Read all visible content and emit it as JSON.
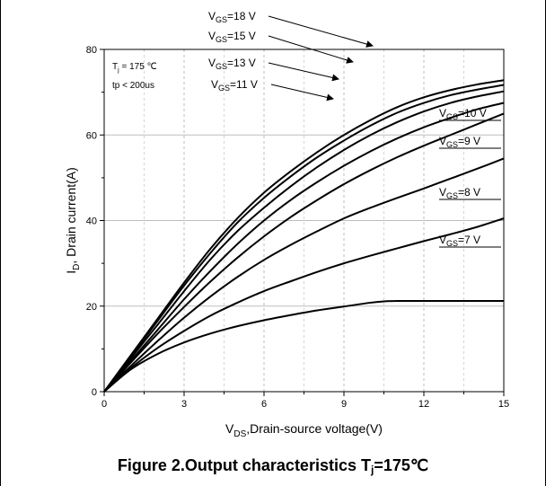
{
  "caption": "Figure 2.Output characteristics T",
  "caption_sub": "j",
  "caption_tail": "=175℃",
  "chart_data": {
    "type": "line",
    "title": "",
    "xlabel": "V_DS,Drain-source voltage(V)",
    "ylabel": "I_D, Drain current(A)",
    "xlim": [
      0,
      15
    ],
    "ylim": [
      0,
      80
    ],
    "xticks": [
      0,
      3,
      6,
      9,
      12,
      15
    ],
    "yticks": [
      0,
      20,
      40,
      60,
      80
    ],
    "grid": true,
    "note_lines": [
      "T_j = 175 ℃",
      "tp < 200us"
    ],
    "series": [
      {
        "name": "VGS=18 V",
        "x": [
          0,
          1,
          2,
          3,
          4,
          5,
          6,
          7,
          8,
          9,
          10,
          11,
          12,
          13,
          14,
          15
        ],
        "y": [
          0,
          8.5,
          17,
          25.5,
          33.5,
          40.5,
          46.5,
          51.5,
          56,
          60,
          63.5,
          66.5,
          68.8,
          70.5,
          71.8,
          72.8
        ]
      },
      {
        "name": "VGS=15 V",
        "x": [
          0,
          1,
          2,
          3,
          4,
          5,
          6,
          7,
          8,
          9,
          10,
          11,
          12,
          13,
          14,
          15
        ],
        "y": [
          0,
          8.2,
          16.5,
          24.8,
          32.5,
          39.5,
          45.3,
          50.3,
          54.8,
          58.7,
          62.2,
          65.2,
          67.5,
          69.3,
          70.6,
          71.7
        ]
      },
      {
        "name": "VGS=13 V",
        "x": [
          0,
          1,
          2,
          3,
          4,
          5,
          6,
          7,
          8,
          9,
          10,
          11,
          12,
          13,
          14,
          15
        ],
        "y": [
          0,
          7.8,
          15.6,
          23.5,
          31,
          37.5,
          43,
          48,
          52.5,
          56.5,
          60,
          63,
          65.5,
          67.5,
          69,
          70.2
        ]
      },
      {
        "name": "VGS=11 V",
        "x": [
          0,
          1,
          2,
          3,
          4,
          5,
          6,
          7,
          8,
          9,
          10,
          11,
          12,
          13,
          14,
          15
        ],
        "y": [
          0,
          7.2,
          14.4,
          21.6,
          28.3,
          34.5,
          40,
          44.8,
          49,
          52.8,
          56.2,
          59.2,
          61.8,
          64,
          66,
          67.5
        ]
      },
      {
        "name": "VGS=10 V",
        "x": [
          0,
          1,
          2,
          3,
          4,
          5,
          6,
          7,
          8,
          9,
          10,
          11,
          12,
          13,
          14,
          15
        ],
        "y": [
          0,
          6.8,
          13.5,
          19.8,
          25.8,
          31.3,
          36.3,
          40.8,
          44.8,
          48.5,
          51.8,
          54.8,
          57.5,
          60,
          62.5,
          65
        ]
      },
      {
        "name": "VGS=9 V",
        "x": [
          0,
          1,
          2,
          3,
          4,
          5,
          6,
          7,
          8,
          9,
          10,
          11,
          12,
          13,
          14,
          15
        ],
        "y": [
          0,
          6,
          11.8,
          17.3,
          22.3,
          26.8,
          30.8,
          34.3,
          37.5,
          40.5,
          43,
          45.3,
          47.5,
          49.8,
          52.1,
          54.5
        ]
      },
      {
        "name": "VGS=8 V",
        "x": [
          0,
          1,
          2,
          3,
          4,
          5,
          6,
          7,
          8,
          9,
          10,
          11,
          12,
          13,
          14,
          15
        ],
        "y": [
          0,
          5.5,
          10.2,
          14.2,
          17.8,
          20.8,
          23.5,
          25.8,
          28,
          30,
          31.8,
          33.5,
          35.2,
          36.8,
          38.5,
          40.5
        ]
      },
      {
        "name": "VGS=7 V",
        "x": [
          0,
          1,
          2,
          3,
          4,
          5,
          6,
          7,
          8,
          9,
          10,
          10.5,
          11,
          12,
          13,
          14,
          15
        ],
        "y": [
          0,
          5.2,
          8.8,
          11.5,
          13.6,
          15.3,
          16.7,
          17.9,
          19,
          19.9,
          20.8,
          21.1,
          21.2,
          21.2,
          21.2,
          21.2,
          21.2
        ]
      }
    ],
    "annotations": [
      {
        "label": "V",
        "sub": "GS",
        "rest": "=18 V"
      },
      {
        "label": "V",
        "sub": "GS",
        "rest": "=15 V"
      },
      {
        "label": "V",
        "sub": "GS",
        "rest": "=13 V"
      },
      {
        "label": "V",
        "sub": "GS",
        "rest": "=11 V"
      },
      {
        "label": "V",
        "sub": "GS",
        "rest": "=10 V"
      },
      {
        "label": "V",
        "sub": "GS",
        "rest": "=9 V"
      },
      {
        "label": "V",
        "sub": "GS",
        "rest": "=8 V"
      },
      {
        "label": "V",
        "sub": "GS",
        "rest": "=7 V"
      }
    ]
  }
}
